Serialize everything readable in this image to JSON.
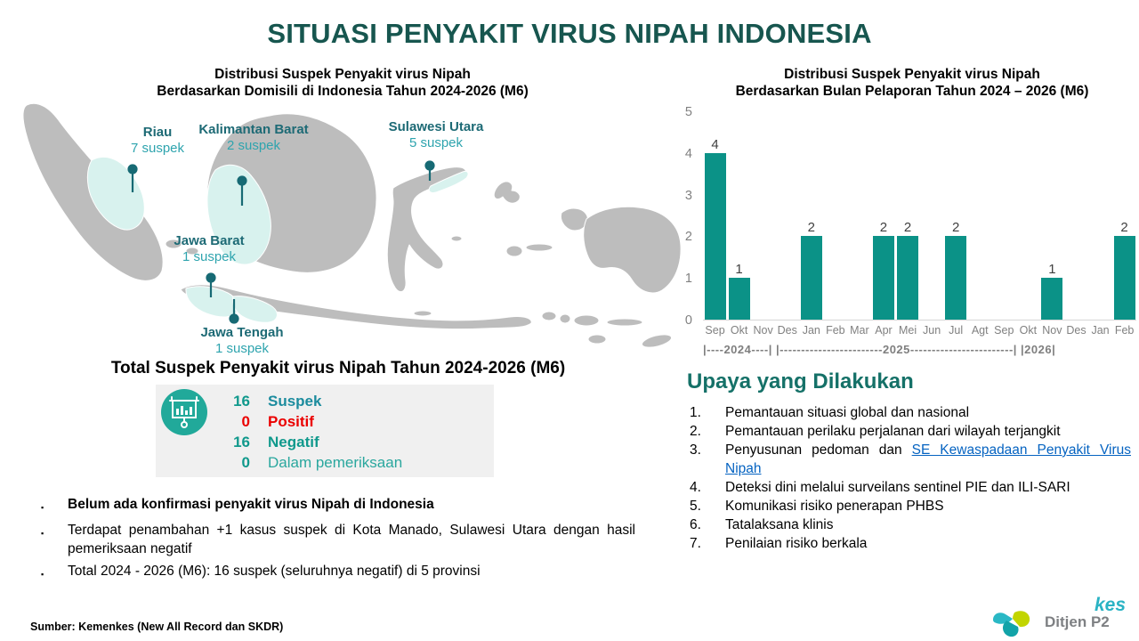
{
  "title": "SITUASI PENYAKIT VIRUS NIPAH INDONESIA",
  "map_section": {
    "title_line1": "Distribusi Suspek Penyakit virus Nipah",
    "title_line2": "Berdasarkan Domisili di Indonesia Tahun 2024-2026 (M6)",
    "provinces": [
      {
        "name": "Riau",
        "count": "7 suspek"
      },
      {
        "name": "Kalimantan Barat",
        "count": "2 suspek"
      },
      {
        "name": "Sulawesi Utara",
        "count": "5 suspek"
      },
      {
        "name": "Jawa Barat",
        "count": "1 suspek"
      },
      {
        "name": "Jawa Tengah",
        "count": "1 suspek"
      }
    ]
  },
  "chart_section": {
    "title_line1": "Distribusi Suspek Penyakit virus Nipah",
    "title_line2": "Berdasarkan Bulan Pelaporan Tahun 2024 – 2026 (M6)"
  },
  "chart_data": {
    "type": "bar",
    "title": "Distribusi Suspek Penyakit virus Nipah Berdasarkan Bulan Pelaporan Tahun 2024 – 2026 (M6)",
    "categories": [
      "Sep",
      "Okt",
      "Nov",
      "Des",
      "Jan",
      "Feb",
      "Mar",
      "Apr",
      "Mei",
      "Jun",
      "Jul",
      "Agt",
      "Sep",
      "Okt",
      "Nov",
      "Des",
      "Jan",
      "Feb"
    ],
    "values": [
      4,
      1,
      0,
      0,
      2,
      0,
      0,
      2,
      2,
      0,
      2,
      0,
      0,
      0,
      1,
      0,
      0,
      2
    ],
    "year_groups": [
      {
        "label": "2024",
        "months": [
          "Sep",
          "Okt",
          "Nov",
          "Des"
        ]
      },
      {
        "label": "2025",
        "months": [
          "Jan",
          "Feb",
          "Mar",
          "Apr",
          "Mei",
          "Jun",
          "Jul",
          "Agt",
          "Sep",
          "Okt",
          "Nov",
          "Des"
        ]
      },
      {
        "label": "2026",
        "months": [
          "Jan",
          "Feb"
        ]
      }
    ],
    "year_axis_text": "|----2024----| |------------------------2025------------------------| |2026|",
    "ylim": [
      0,
      5
    ],
    "yticks": [
      0,
      1,
      2,
      3,
      4,
      5
    ],
    "xlabel": "",
    "ylabel": "",
    "grid": false,
    "legend": false,
    "bar_color": "#0B9287"
  },
  "totals": {
    "title": "Total Suspek Penyakit virus Nipah Tahun 2024-2026 (M6)",
    "icon": "presentation-bar-chart-icon",
    "icon_color": "#21A99A",
    "rows": [
      {
        "value": "16",
        "label": "Suspek",
        "value_color": "#10998C",
        "label_color": "#1C8C9E",
        "label_bold": true
      },
      {
        "value": "0",
        "label": "Positif",
        "value_color": "#EB0000",
        "label_color": "#EB0000",
        "label_bold": true
      },
      {
        "value": "16",
        "label": "Negatif",
        "value_color": "#10998C",
        "label_color": "#10998C",
        "label_bold": true
      },
      {
        "value": "0",
        "label": "Dalam pemeriksaan",
        "value_color": "#10998C",
        "label_color": "#2AA79E",
        "label_bold": false
      }
    ]
  },
  "bullets": [
    {
      "text": "Belum ada konfirmasi penyakit virus Nipah di Indonesia",
      "bold": true
    },
    {
      "text": "Terdapat penambahan +1 kasus suspek di Kota Manado, Sulawesi Utara dengan hasil pemeriksaan negatif",
      "bold": false
    },
    {
      "text": "Total 2024 - 2026 (M6): 16 suspek (seluruhnya negatif) di 5 provinsi",
      "bold": false
    }
  ],
  "upaya": {
    "heading": "Upaya yang Dilakukan",
    "items": [
      {
        "text": "Pemantauan situasi global dan nasional"
      },
      {
        "text": "Pemantauan perilaku perjalanan dari wilayah terjangkit"
      },
      {
        "pre": "Penyusunan pedoman dan ",
        "link_text": "SE Kewaspadaan Penyakit Virus Nipah"
      },
      {
        "text": "Deteksi dini melalui surveilans sentinel PIE dan ILI-SARI"
      },
      {
        "text": "Komunikasi risiko penerapan PHBS"
      },
      {
        "text": "Tatalaksana klinis"
      },
      {
        "text": "Penilaian risiko berkala"
      }
    ]
  },
  "footer": {
    "source": "Sumber: Kemenkes (New All Record dan SKDR)",
    "logo_label": "Ditjen P2",
    "logo_fragment": "kes"
  },
  "colors": {
    "title": "#17564F",
    "accent_teal": "#0B9287",
    "map_base": "#BDBDBD",
    "map_highlight": "#D8F2EE",
    "pin": "#176A74",
    "province_name": "#1D6A75",
    "province_count": "#2EA4AE",
    "positif_red": "#EB0000",
    "link_blue": "#0563C1",
    "axis_gray": "#808080"
  }
}
